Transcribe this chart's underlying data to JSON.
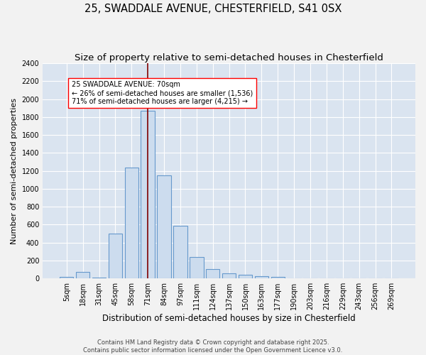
{
  "title": "25, SWADDALE AVENUE, CHESTERFIELD, S41 0SX",
  "subtitle": "Size of property relative to semi-detached houses in Chesterfield",
  "xlabel": "Distribution of semi-detached houses by size in Chesterfield",
  "ylabel": "Number of semi-detached properties",
  "bar_color": "#ccdcee",
  "bar_edge_color": "#6699cc",
  "bar_edge_width": 0.8,
  "grid_color": "#ffffff",
  "bg_color": "#dae4f0",
  "fig_bg_color": "#f2f2f2",
  "categories": [
    "5sqm",
    "18sqm",
    "31sqm",
    "45sqm",
    "58sqm",
    "71sqm",
    "84sqm",
    "97sqm",
    "111sqm",
    "124sqm",
    "137sqm",
    "150sqm",
    "163sqm",
    "177sqm",
    "190sqm",
    "203sqm",
    "216sqm",
    "229sqm",
    "243sqm",
    "256sqm",
    "269sqm"
  ],
  "values": [
    18,
    75,
    8,
    498,
    1238,
    1868,
    1148,
    588,
    238,
    105,
    58,
    38,
    22,
    14,
    5,
    0,
    0,
    4,
    0,
    0,
    0
  ],
  "vline_x": 5,
  "vline_color": "#800000",
  "annotation_text": "25 SWADDALE AVENUE: 70sqm\n← 26% of semi-detached houses are smaller (1,536)\n71% of semi-detached houses are larger (4,215) →",
  "ylim": [
    0,
    2400
  ],
  "yticks": [
    0,
    200,
    400,
    600,
    800,
    1000,
    1200,
    1400,
    1600,
    1800,
    2000,
    2200,
    2400
  ],
  "footer_text": "Contains HM Land Registry data © Crown copyright and database right 2025.\nContains public sector information licensed under the Open Government Licence v3.0.",
  "title_fontsize": 10.5,
  "subtitle_fontsize": 9.5,
  "xlabel_fontsize": 8.5,
  "ylabel_fontsize": 8,
  "tick_fontsize": 7,
  "annotation_fontsize": 7,
  "footer_fontsize": 6
}
